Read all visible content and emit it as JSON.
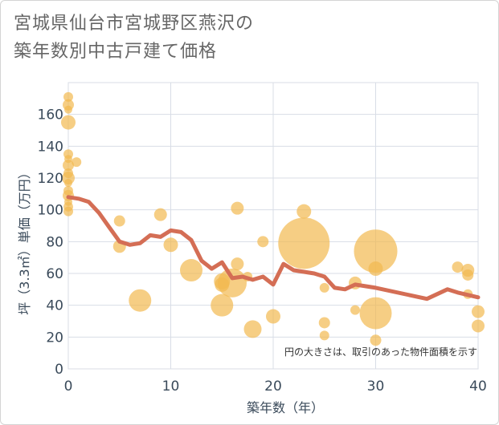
{
  "title_line1": "宮城県仙台市宮城野区燕沢の",
  "title_line2": "築年数別中古戸建て価格",
  "chart_data": {
    "type": "scatter",
    "xlabel": "築年数（年）",
    "ylabel": "坪（3.3㎡）単価（万円）",
    "xlim": [
      0,
      40
    ],
    "ylim": [
      0,
      180
    ],
    "xticks": [
      0,
      10,
      20,
      30,
      40
    ],
    "yticks": [
      0,
      20,
      40,
      60,
      80,
      100,
      120,
      140,
      160
    ],
    "note": "円の大きさは、取引のあった物件面積を示す",
    "colors": {
      "bubble": "#f2b950",
      "line": "#d46e55",
      "grid": "#d8dde6"
    },
    "points": [
      {
        "x": 0,
        "y": 171,
        "size": 6
      },
      {
        "x": 0,
        "y": 166,
        "size": 7
      },
      {
        "x": 0,
        "y": 163,
        "size": 5
      },
      {
        "x": 0,
        "y": 155,
        "size": 9
      },
      {
        "x": 0,
        "y": 135,
        "size": 6
      },
      {
        "x": 0,
        "y": 132,
        "size": 5
      },
      {
        "x": 0,
        "y": 128,
        "size": 7
      },
      {
        "x": 0,
        "y": 123,
        "size": 6
      },
      {
        "x": 0,
        "y": 120,
        "size": 8
      },
      {
        "x": 0,
        "y": 117,
        "size": 5
      },
      {
        "x": 0,
        "y": 112,
        "size": 6
      },
      {
        "x": 0,
        "y": 109,
        "size": 7
      },
      {
        "x": 0,
        "y": 105,
        "size": 5
      },
      {
        "x": 0,
        "y": 102,
        "size": 6
      },
      {
        "x": 0,
        "y": 99,
        "size": 6
      },
      {
        "x": 0.8,
        "y": 130,
        "size": 6
      },
      {
        "x": 5,
        "y": 93,
        "size": 7
      },
      {
        "x": 5,
        "y": 77,
        "size": 8
      },
      {
        "x": 7,
        "y": 43,
        "size": 14
      },
      {
        "x": 9,
        "y": 97,
        "size": 8
      },
      {
        "x": 10,
        "y": 78,
        "size": 9
      },
      {
        "x": 12,
        "y": 62,
        "size": 14
      },
      {
        "x": 15,
        "y": 55,
        "size": 10
      },
      {
        "x": 15,
        "y": 53,
        "size": 9
      },
      {
        "x": 15,
        "y": 40,
        "size": 14
      },
      {
        "x": 16,
        "y": 54,
        "size": 18
      },
      {
        "x": 16.5,
        "y": 101,
        "size": 8
      },
      {
        "x": 16.5,
        "y": 66,
        "size": 8
      },
      {
        "x": 17.5,
        "y": 58,
        "size": 6
      },
      {
        "x": 18,
        "y": 25,
        "size": 11
      },
      {
        "x": 19,
        "y": 80,
        "size": 7
      },
      {
        "x": 20,
        "y": 33,
        "size": 9
      },
      {
        "x": 23,
        "y": 79,
        "size": 32
      },
      {
        "x": 23,
        "y": 99,
        "size": 9
      },
      {
        "x": 25,
        "y": 51,
        "size": 6
      },
      {
        "x": 25,
        "y": 29,
        "size": 7
      },
      {
        "x": 25,
        "y": 21,
        "size": 6
      },
      {
        "x": 28,
        "y": 54,
        "size": 8
      },
      {
        "x": 28,
        "y": 37,
        "size": 6
      },
      {
        "x": 30,
        "y": 74,
        "size": 27
      },
      {
        "x": 30,
        "y": 63,
        "size": 9
      },
      {
        "x": 30,
        "y": 35,
        "size": 20
      },
      {
        "x": 30,
        "y": 18,
        "size": 7
      },
      {
        "x": 38,
        "y": 64,
        "size": 7
      },
      {
        "x": 39,
        "y": 62,
        "size": 8
      },
      {
        "x": 39,
        "y": 59,
        "size": 7
      },
      {
        "x": 39,
        "y": 47,
        "size": 6
      },
      {
        "x": 40,
        "y": 36,
        "size": 8
      },
      {
        "x": 40,
        "y": 27,
        "size": 8
      }
    ],
    "trend": [
      {
        "x": 0,
        "y": 108
      },
      {
        "x": 1,
        "y": 107
      },
      {
        "x": 2,
        "y": 105
      },
      {
        "x": 3,
        "y": 98
      },
      {
        "x": 4,
        "y": 89
      },
      {
        "x": 5,
        "y": 80
      },
      {
        "x": 6,
        "y": 78
      },
      {
        "x": 7,
        "y": 79
      },
      {
        "x": 8,
        "y": 84
      },
      {
        "x": 9,
        "y": 83
      },
      {
        "x": 10,
        "y": 87
      },
      {
        "x": 11,
        "y": 86
      },
      {
        "x": 12,
        "y": 81
      },
      {
        "x": 13,
        "y": 68
      },
      {
        "x": 14,
        "y": 63
      },
      {
        "x": 15,
        "y": 67
      },
      {
        "x": 16,
        "y": 57
      },
      {
        "x": 17,
        "y": 58
      },
      {
        "x": 18,
        "y": 56
      },
      {
        "x": 19,
        "y": 58
      },
      {
        "x": 20,
        "y": 53
      },
      {
        "x": 21,
        "y": 66
      },
      {
        "x": 22,
        "y": 62
      },
      {
        "x": 23,
        "y": 61
      },
      {
        "x": 24,
        "y": 60
      },
      {
        "x": 25,
        "y": 58
      },
      {
        "x": 26,
        "y": 51
      },
      {
        "x": 27,
        "y": 50
      },
      {
        "x": 28,
        "y": 53
      },
      {
        "x": 30,
        "y": 51
      },
      {
        "x": 35,
        "y": 44
      },
      {
        "x": 37,
        "y": 50
      },
      {
        "x": 38,
        "y": 48
      },
      {
        "x": 40,
        "y": 45
      }
    ]
  }
}
